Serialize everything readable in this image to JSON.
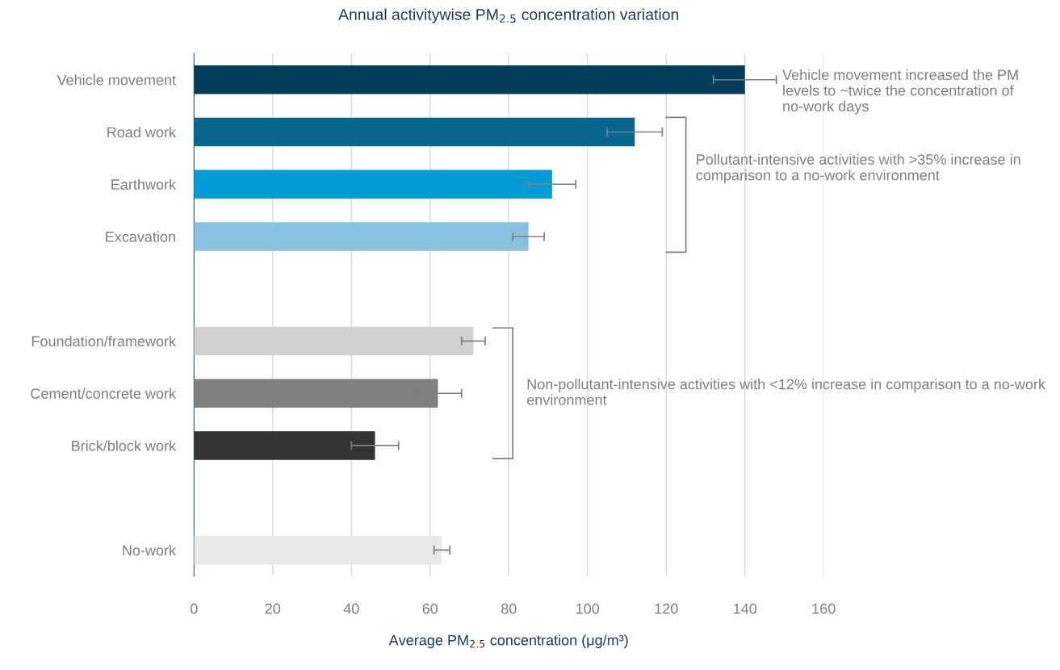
{
  "chart_data": {
    "type": "bar",
    "orientation": "horizontal",
    "title": "Annual activitywise PM$_{2.5}$ concentration variation",
    "xlabel": "Average PM$_{2.5}$ concentration (μg/m³)",
    "categories": [
      "Vehicle movement",
      "Road work",
      "Earthwork",
      "Excavation",
      null,
      "Foundation/framework",
      "Cement/concrete work",
      "Brick/block work",
      null,
      "No-work"
    ],
    "values": [
      140,
      112,
      91,
      85,
      null,
      71,
      62,
      46,
      null,
      63
    ],
    "errors": [
      8,
      7,
      6,
      4,
      null,
      3,
      6,
      6,
      null,
      2
    ],
    "colors": [
      "#043d5c",
      "#06668f",
      "#039bd5",
      "#89c2e0",
      null,
      "#d0d0ce",
      "#7f7f7f",
      "#333333",
      null,
      "#e8e8e8"
    ],
    "xlim": [
      0,
      160
    ],
    "xticks": [
      0,
      20,
      40,
      60,
      80,
      100,
      120,
      140,
      160
    ],
    "grid": "x",
    "annotations": [
      "Vehicle movement increased the PM levels to ~twice the concentration of no-work days",
      "Pollutant-intensive activities with >35% increase in comparison to a no-work environment",
      "Non-pollutant-intensive activities with <12% increase in comparison to a no-work environment"
    ]
  }
}
